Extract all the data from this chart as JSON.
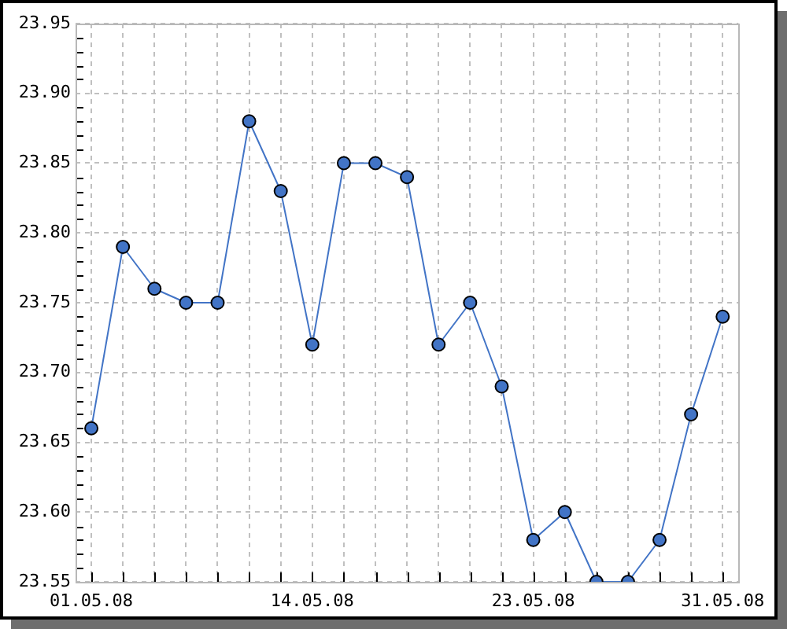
{
  "chart_data": {
    "type": "line",
    "categories": [
      "01.05.08",
      null,
      null,
      null,
      null,
      null,
      null,
      "14.05.08",
      null,
      null,
      null,
      null,
      null,
      null,
      "23.05.08",
      null,
      null,
      null,
      null,
      null,
      "31.05.08"
    ],
    "series": [
      {
        "color": "#4274c6",
        "values": [
          23.66,
          23.79,
          23.76,
          23.75,
          23.75,
          23.88,
          23.83,
          23.72,
          23.85,
          23.85,
          23.84,
          23.72,
          23.75,
          23.69,
          23.58,
          23.6,
          23.55,
          23.55,
          23.58,
          23.67,
          23.74
        ]
      }
    ],
    "ylim": [
      23.55,
      23.95
    ],
    "yticks": [
      {
        "value": 23.55,
        "label": "23.55"
      },
      {
        "value": 23.56,
        "label": null
      },
      {
        "value": 23.57,
        "label": null
      },
      {
        "value": 23.58,
        "label": null
      },
      {
        "value": 23.59,
        "label": null
      },
      {
        "value": 23.6,
        "label": "23.60"
      },
      {
        "value": 23.61,
        "label": null
      },
      {
        "value": 23.62,
        "label": null
      },
      {
        "value": 23.63,
        "label": null
      },
      {
        "value": 23.64,
        "label": null
      },
      {
        "value": 23.65,
        "label": "23.65"
      },
      {
        "value": 23.66,
        "label": null
      },
      {
        "value": 23.67,
        "label": null
      },
      {
        "value": 23.68,
        "label": null
      },
      {
        "value": 23.69,
        "label": null
      },
      {
        "value": 23.7,
        "label": "23.70"
      },
      {
        "value": 23.71,
        "label": null
      },
      {
        "value": 23.72,
        "label": null
      },
      {
        "value": 23.73,
        "label": null
      },
      {
        "value": 23.74,
        "label": null
      },
      {
        "value": 23.75,
        "label": "23.75"
      },
      {
        "value": 23.76,
        "label": null
      },
      {
        "value": 23.77,
        "label": null
      },
      {
        "value": 23.78,
        "label": null
      },
      {
        "value": 23.79,
        "label": null
      },
      {
        "value": 23.8,
        "label": "23.80"
      },
      {
        "value": 23.81,
        "label": null
      },
      {
        "value": 23.82,
        "label": null
      },
      {
        "value": 23.83,
        "label": null
      },
      {
        "value": 23.84,
        "label": null
      },
      {
        "value": 23.85,
        "label": "23.85"
      },
      {
        "value": 23.86,
        "label": null
      },
      {
        "value": 23.87,
        "label": null
      },
      {
        "value": 23.88,
        "label": null
      },
      {
        "value": 23.89,
        "label": null
      },
      {
        "value": 23.9,
        "label": "23.90"
      },
      {
        "value": 23.91,
        "label": null
      },
      {
        "value": 23.92,
        "label": null
      },
      {
        "value": 23.93,
        "label": null
      },
      {
        "value": 23.94,
        "label": null
      },
      {
        "value": 23.95,
        "label": "23.95"
      }
    ],
    "grid": true,
    "legend": false,
    "marker": "circle",
    "line_style": "solid"
  }
}
